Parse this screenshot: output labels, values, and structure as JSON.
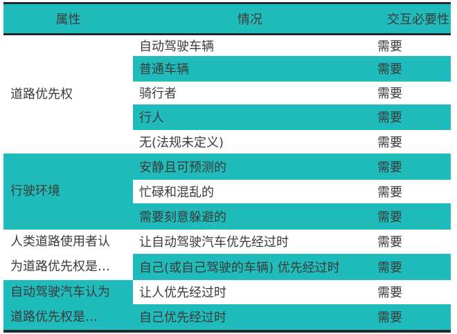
{
  "header": {
    "attribute": "属性",
    "situation": "情况",
    "necessity": "交互必要性"
  },
  "accent_color": "#20bbbb",
  "groups": [
    {
      "label": "道路优先权",
      "rows": [
        {
          "situation": "自动驾驶车辆",
          "necessity": "需要"
        },
        {
          "situation": "普通车辆",
          "necessity": "需要"
        },
        {
          "situation": "骑行者",
          "necessity": "需要"
        },
        {
          "situation": "行人",
          "necessity": "需要"
        },
        {
          "situation": "无(法规未定义)",
          "necessity": "需要"
        }
      ]
    },
    {
      "label": "行驶环境",
      "rows": [
        {
          "situation": "安静且可预测的",
          "necessity": "需要"
        },
        {
          "situation": "忙碌和混乱的",
          "necessity": "需要"
        },
        {
          "situation": "需要刻意躲避的",
          "necessity": "需要"
        }
      ]
    },
    {
      "label_lines": [
        "人类道路使用者认",
        "为道路优先权是…"
      ],
      "rows": [
        {
          "situation": "让自动驾驶汽车优先经过时",
          "necessity": "需要"
        },
        {
          "situation": "自己(或自己驾驶的车辆) 优先经过时",
          "necessity": "需要"
        }
      ]
    },
    {
      "label_lines": [
        "自动驾驶汽车认为",
        "道路优先权是…"
      ],
      "rows": [
        {
          "situation": "让人优先经过时",
          "necessity": "需要"
        },
        {
          "situation": "自己优先经过时",
          "necessity": "需要"
        }
      ]
    }
  ]
}
